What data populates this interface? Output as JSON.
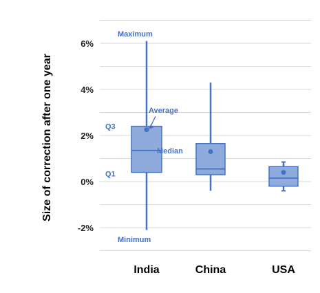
{
  "chart_data": {
    "type": "box",
    "ylabel": "Size of correction after one year",
    "yticks": [
      "6%",
      "4%",
      "2%",
      "0%",
      "-2%"
    ],
    "ytick_values": [
      6,
      4,
      2,
      0,
      -2
    ],
    "ylim": [
      -3,
      7
    ],
    "grid": true,
    "categories": [
      "India",
      "China",
      "USA"
    ],
    "boxes": [
      {
        "category": "India",
        "min": -2.1,
        "q1": 0.4,
        "median": 1.35,
        "q3": 2.4,
        "max": 6.1,
        "mean": 2.25
      },
      {
        "category": "China",
        "min": -0.4,
        "q1": 0.3,
        "median": 0.55,
        "q3": 1.65,
        "max": 4.3,
        "mean": 1.3
      },
      {
        "category": "USA",
        "min": -0.4,
        "q1": -0.2,
        "median": 0.15,
        "q3": 0.65,
        "max": 0.85,
        "mean": 0.4
      }
    ],
    "annotations": {
      "maximum": "Maximum",
      "average": "Average",
      "q3": "Q3",
      "median": "Median",
      "q1": "Q1",
      "minimum": "Minimum"
    },
    "colors": {
      "box_fill": "#8faadc",
      "box_stroke": "#4472c4",
      "annotation": "#4472c4"
    }
  }
}
